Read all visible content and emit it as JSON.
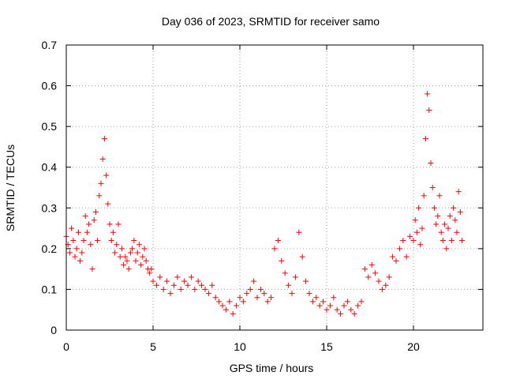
{
  "chart_data": {
    "type": "scatter",
    "title": "Day 036 of 2023, SRMTID for receiver samo",
    "xlabel": "GPS time / hours",
    "ylabel": "SRMTID / TECUs",
    "xlim": [
      0,
      24
    ],
    "ylim": [
      0,
      0.7
    ],
    "xticks": [
      0,
      5,
      10,
      15,
      20
    ],
    "xtick_labels": [
      "0",
      "5",
      "10",
      "15",
      "20"
    ],
    "yticks": [
      0,
      0.1,
      0.2,
      0.3,
      0.4,
      0.5,
      0.6,
      0.7
    ],
    "ytick_labels": [
      "0",
      "0.1",
      "0.2",
      "0.3",
      "0.4",
      "0.5",
      "0.6",
      "0.7"
    ],
    "grid": true,
    "marker": "+",
    "color": "#ff0000",
    "series": [
      {
        "name": "SRMTID",
        "x": [
          0.0,
          0.1,
          0.2,
          0.3,
          0.4,
          0.5,
          0.6,
          0.7,
          0.8,
          0.9,
          1.0,
          1.1,
          1.2,
          1.3,
          1.4,
          1.5,
          1.6,
          1.7,
          1.8,
          1.9,
          2.0,
          2.1,
          2.2,
          2.3,
          2.4,
          2.5,
          2.6,
          2.7,
          2.8,
          2.9,
          3.0,
          3.1,
          3.2,
          3.3,
          3.4,
          3.5,
          3.6,
          3.7,
          3.8,
          3.9,
          4.0,
          4.1,
          4.2,
          4.3,
          4.4,
          4.5,
          4.6,
          4.7,
          4.8,
          4.9,
          5.0,
          5.2,
          5.4,
          5.6,
          5.8,
          6.0,
          6.2,
          6.4,
          6.6,
          6.8,
          7.0,
          7.2,
          7.4,
          7.6,
          7.8,
          8.0,
          8.2,
          8.4,
          8.6,
          8.8,
          9.0,
          9.2,
          9.4,
          9.6,
          9.8,
          10.0,
          10.2,
          10.4,
          10.6,
          10.8,
          11.0,
          11.2,
          11.4,
          11.6,
          11.8,
          12.0,
          12.2,
          12.4,
          12.6,
          12.8,
          13.0,
          13.2,
          13.4,
          13.6,
          13.8,
          14.0,
          14.2,
          14.4,
          14.6,
          14.8,
          15.0,
          15.2,
          15.4,
          15.6,
          15.8,
          16.0,
          16.2,
          16.4,
          16.6,
          16.8,
          17.0,
          17.2,
          17.4,
          17.6,
          17.8,
          18.0,
          18.2,
          18.4,
          18.6,
          18.8,
          19.0,
          19.2,
          19.4,
          19.6,
          19.8,
          20.0,
          20.1,
          20.2,
          20.3,
          20.4,
          20.5,
          20.6,
          20.7,
          20.8,
          20.9,
          21.0,
          21.1,
          21.2,
          21.3,
          21.4,
          21.5,
          21.6,
          21.7,
          21.8,
          21.9,
          22.0,
          22.1,
          22.2,
          22.3,
          22.4,
          22.5,
          22.6,
          22.7,
          22.8
        ],
        "y": [
          0.23,
          0.21,
          0.19,
          0.25,
          0.22,
          0.18,
          0.2,
          0.24,
          0.17,
          0.19,
          0.22,
          0.28,
          0.24,
          0.26,
          0.21,
          0.15,
          0.27,
          0.29,
          0.22,
          0.33,
          0.36,
          0.42,
          0.47,
          0.38,
          0.31,
          0.26,
          0.22,
          0.24,
          0.19,
          0.21,
          0.26,
          0.18,
          0.2,
          0.16,
          0.18,
          0.17,
          0.15,
          0.19,
          0.2,
          0.22,
          0.17,
          0.19,
          0.21,
          0.16,
          0.18,
          0.2,
          0.17,
          0.15,
          0.14,
          0.15,
          0.12,
          0.11,
          0.13,
          0.1,
          0.12,
          0.09,
          0.11,
          0.13,
          0.1,
          0.12,
          0.11,
          0.13,
          0.1,
          0.12,
          0.11,
          0.1,
          0.09,
          0.11,
          0.08,
          0.07,
          0.06,
          0.05,
          0.07,
          0.04,
          0.06,
          0.08,
          0.07,
          0.09,
          0.1,
          0.12,
          0.08,
          0.1,
          0.09,
          0.07,
          0.08,
          0.2,
          0.22,
          0.17,
          0.14,
          0.11,
          0.09,
          0.13,
          0.24,
          0.18,
          0.12,
          0.09,
          0.07,
          0.08,
          0.06,
          0.07,
          0.05,
          0.06,
          0.08,
          0.05,
          0.04,
          0.06,
          0.07,
          0.05,
          0.04,
          0.06,
          0.07,
          0.15,
          0.13,
          0.16,
          0.14,
          0.12,
          0.1,
          0.11,
          0.13,
          0.18,
          0.17,
          0.2,
          0.22,
          0.18,
          0.23,
          0.22,
          0.27,
          0.24,
          0.3,
          0.21,
          0.25,
          0.33,
          0.47,
          0.58,
          0.54,
          0.41,
          0.35,
          0.3,
          0.26,
          0.28,
          0.33,
          0.24,
          0.22,
          0.26,
          0.2,
          0.25,
          0.28,
          0.22,
          0.3,
          0.27,
          0.24,
          0.34,
          0.29,
          0.22
        ]
      }
    ]
  }
}
